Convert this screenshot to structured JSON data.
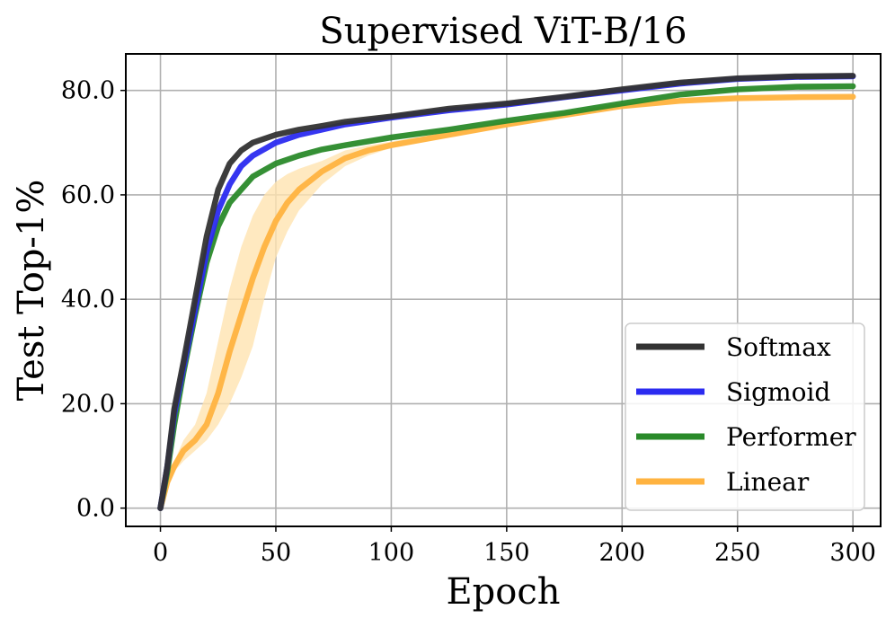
{
  "chart_data": {
    "type": "line",
    "title": "Supervised ViT-B/16",
    "xlabel": "Epoch",
    "ylabel": "Test Top-1%",
    "xlim": [
      -15,
      312
    ],
    "ylim": [
      -3.5,
      87
    ],
    "xticks": [
      0,
      50,
      100,
      150,
      200,
      250,
      300
    ],
    "xtick_labels": [
      "0",
      "50",
      "100",
      "150",
      "200",
      "250",
      "300"
    ],
    "yticks": [
      0,
      20,
      40,
      60,
      80
    ],
    "ytick_labels": [
      "0.0",
      "20.0",
      "40.0",
      "60.0",
      "80.0"
    ],
    "grid": true,
    "legend_position": "lower-right",
    "series": [
      {
        "name": "Softmax",
        "color": "#333333",
        "x": [
          0,
          3,
          6,
          10,
          15,
          20,
          25,
          30,
          35,
          40,
          50,
          60,
          70,
          80,
          100,
          125,
          150,
          175,
          200,
          225,
          250,
          275,
          300
        ],
        "y": [
          0,
          8,
          19,
          28,
          40,
          52,
          61,
          66,
          68.5,
          70,
          71.5,
          72.5,
          73.2,
          74,
          75,
          76.5,
          77.5,
          78.8,
          80.2,
          81.5,
          82.3,
          82.7,
          82.8
        ]
      },
      {
        "name": "Sigmoid",
        "color": "#2b2bf0",
        "x": [
          0,
          3,
          6,
          10,
          15,
          20,
          25,
          30,
          35,
          40,
          50,
          60,
          70,
          80,
          100,
          125,
          150,
          175,
          200,
          225,
          250,
          275,
          300
        ],
        "y": [
          0,
          8,
          18,
          27,
          38,
          49,
          57,
          62,
          65.5,
          67.5,
          70,
          71.5,
          72.5,
          73.5,
          74.8,
          76.2,
          77.3,
          78.7,
          80,
          81.3,
          82.2,
          82.6,
          82.7
        ]
      },
      {
        "name": "Performer",
        "color": "#2a8a2a",
        "x": [
          0,
          3,
          6,
          10,
          15,
          20,
          25,
          30,
          35,
          40,
          50,
          60,
          70,
          80,
          100,
          125,
          150,
          175,
          200,
          225,
          250,
          275,
          300
        ],
        "y": [
          0,
          7,
          16,
          26,
          37,
          47,
          54,
          58.5,
          61,
          63.5,
          66,
          67.5,
          68.7,
          69.5,
          71,
          72.5,
          74.2,
          75.7,
          77.5,
          79.2,
          80.2,
          80.7,
          80.8
        ]
      },
      {
        "name": "Linear",
        "color": "#ffb340",
        "band_color": "#ffe3b0",
        "x": [
          0,
          3,
          6,
          10,
          15,
          20,
          25,
          30,
          35,
          40,
          45,
          50,
          55,
          60,
          70,
          80,
          90,
          100,
          125,
          150,
          175,
          200,
          225,
          250,
          275,
          300
        ],
        "y": [
          0,
          5,
          8,
          11,
          13,
          16,
          22,
          30,
          37,
          44,
          50,
          55,
          58.5,
          61,
          64.5,
          67,
          68.5,
          69.5,
          71.5,
          73.5,
          75.3,
          77,
          78,
          78.5,
          78.7,
          78.8
        ],
        "band_low": [
          0,
          4,
          7,
          9,
          11,
          13,
          16,
          20,
          25,
          31,
          40,
          48,
          53,
          57,
          62,
          65.5,
          67.5,
          69,
          71,
          73,
          75,
          76.7,
          77.7,
          78.2,
          78.4,
          78.5
        ],
        "band_high": [
          0,
          6,
          9,
          13,
          16,
          22,
          32,
          42,
          50,
          56,
          60,
          62.5,
          64,
          65,
          66.5,
          68.5,
          69.5,
          70.2,
          72,
          74,
          75.7,
          77.3,
          78.3,
          78.8,
          79,
          79.1
        ]
      }
    ]
  }
}
